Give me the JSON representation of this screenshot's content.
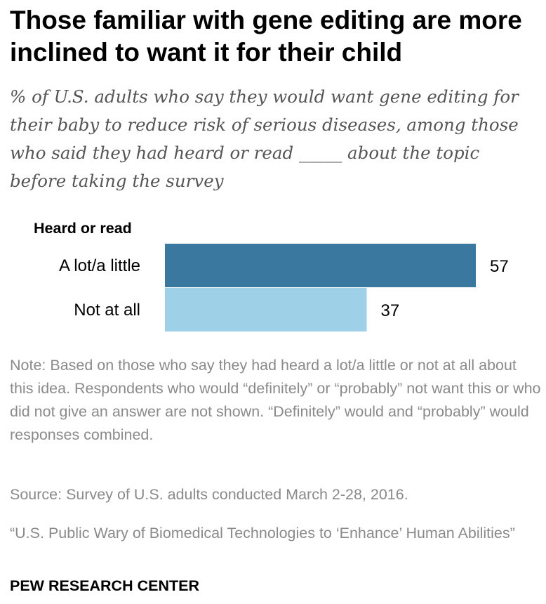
{
  "title": "Those familiar with gene editing are more inclined to want it for their child",
  "subtitle": "% of U.S. adults who say they would want gene editing for their baby to reduce risk of serious diseases, among those who said they had heard or read _____ about the topic before taking the survey",
  "chart_data": {
    "type": "bar",
    "orientation": "horizontal",
    "group_label": "Heard or read",
    "categories": [
      "A lot/a little",
      "Not at all"
    ],
    "values": [
      57,
      37
    ],
    "value_labels": [
      "57",
      "37"
    ],
    "colors": [
      "#3b789f",
      "#9ed0e8"
    ],
    "xlim": [
      0,
      57
    ],
    "grid": false,
    "legend": "none"
  },
  "note": "Note: Based on those who say they had heard a lot/a little or not at all about this idea. Respondents who would “definitely” or “probably” not want this or who did not give an answer are not shown. “Definitely” would and “probably” would responses combined.",
  "source": "Source: Survey of U.S. adults conducted March 2-28, 2016.",
  "report": "“U.S. Public Wary of Biomedical Technologies to ‘Enhance’ Human Abilities”",
  "logo": "PEW RESEARCH CENTER"
}
